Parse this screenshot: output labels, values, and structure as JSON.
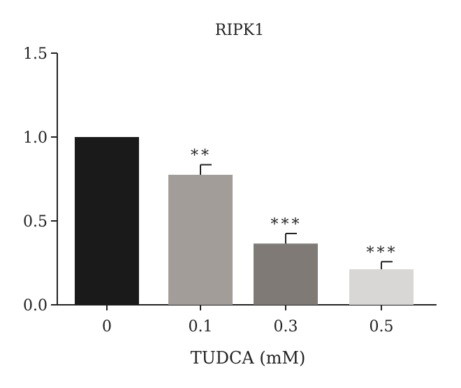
{
  "chart_data": {
    "type": "bar",
    "title": "RIPK1",
    "xlabel": "TUDCA (mM)",
    "ylabel": "",
    "categories": [
      "0",
      "0.1",
      "0.3",
      "0.5"
    ],
    "values": [
      1.0,
      0.775,
      0.365,
      0.212
    ],
    "errors": [
      0,
      0.06,
      0.06,
      0.045
    ],
    "significance": [
      "",
      "**",
      "***",
      "***"
    ],
    "bar_colors": [
      "#1a1a1a",
      "#a39d9a",
      "#7f7a76",
      "#d9d7d5"
    ],
    "ylim": [
      0,
      1.5
    ],
    "yticks": [
      "0.0",
      "0.5",
      "1.0",
      "1.5"
    ],
    "grid": false,
    "legend": "none"
  }
}
